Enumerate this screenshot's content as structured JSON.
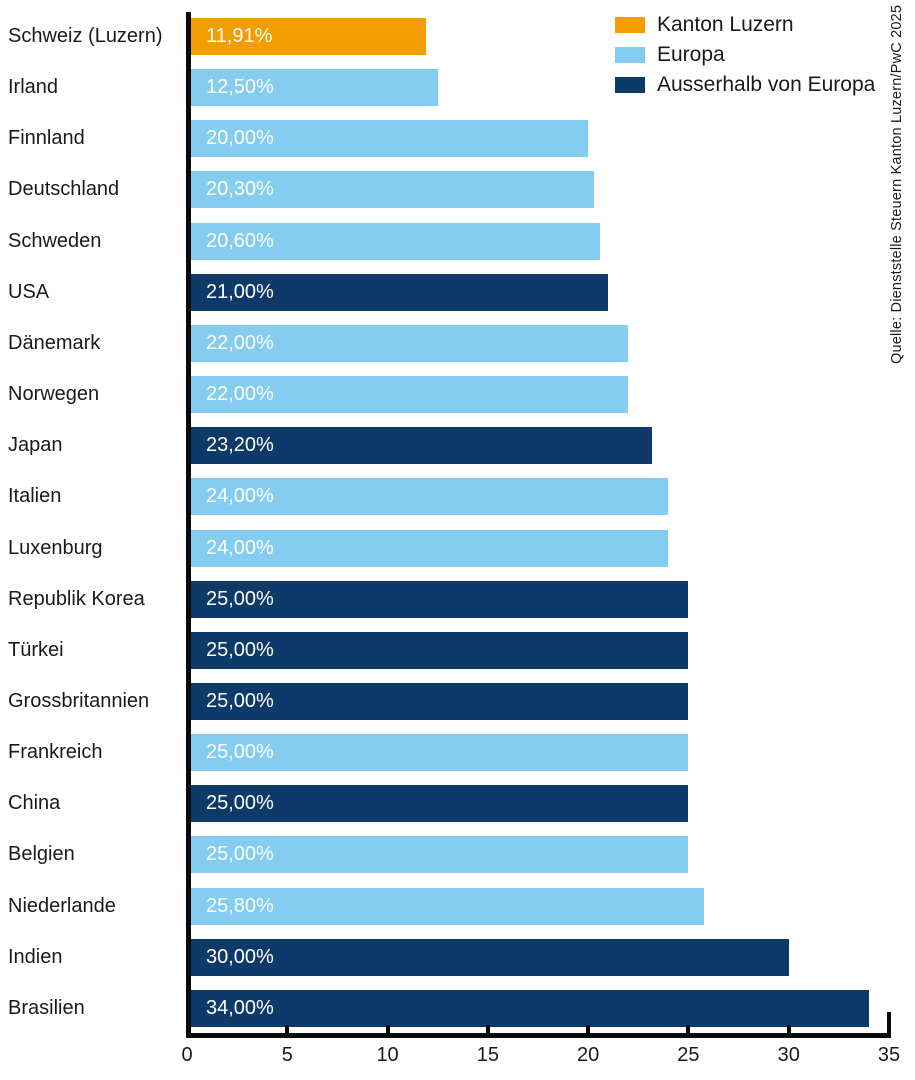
{
  "chart_data": {
    "type": "bar",
    "orientation": "horizontal",
    "title": "",
    "xlabel": "",
    "ylabel": "",
    "xlim": [
      0,
      35
    ],
    "x_ticks": [
      0,
      5,
      10,
      15,
      20,
      25,
      30,
      35
    ],
    "grid": false,
    "legend_position": "top-right",
    "legend": [
      {
        "label": "Kanton Luzern",
        "color": "#f49d00"
      },
      {
        "label": "Europa",
        "color": "#84ccf0"
      },
      {
        "label": "Ausserhalb von Europa",
        "color": "#0e3a69"
      }
    ],
    "bars": [
      {
        "label": "Schweiz (Luzern)",
        "value": 11.91,
        "value_label": "11,91%",
        "group": "Kanton Luzern"
      },
      {
        "label": "Irland",
        "value": 12.5,
        "value_label": "12,50%",
        "group": "Europa"
      },
      {
        "label": "Finnland",
        "value": 20.0,
        "value_label": "20,00%",
        "group": "Europa"
      },
      {
        "label": "Deutschland",
        "value": 20.3,
        "value_label": "20,30%",
        "group": "Europa"
      },
      {
        "label": "Schweden",
        "value": 20.6,
        "value_label": "20,60%",
        "group": "Europa"
      },
      {
        "label": "USA",
        "value": 21.0,
        "value_label": "21,00%",
        "group": "Ausserhalb von Europa"
      },
      {
        "label": "Dänemark",
        "value": 22.0,
        "value_label": "22,00%",
        "group": "Europa"
      },
      {
        "label": "Norwegen",
        "value": 22.0,
        "value_label": "22,00%",
        "group": "Europa"
      },
      {
        "label": "Japan",
        "value": 23.2,
        "value_label": "23,20%",
        "group": "Ausserhalb von Europa"
      },
      {
        "label": "Italien",
        "value": 24.0,
        "value_label": "24,00%",
        "group": "Europa"
      },
      {
        "label": "Luxenburg",
        "value": 24.0,
        "value_label": "24,00%",
        "group": "Europa"
      },
      {
        "label": "Republik Korea",
        "value": 25.0,
        "value_label": "25,00%",
        "group": "Ausserhalb von Europa"
      },
      {
        "label": "Türkei",
        "value": 25.0,
        "value_label": "25,00%",
        "group": "Ausserhalb von Europa"
      },
      {
        "label": "Grossbritannien",
        "value": 25.0,
        "value_label": "25,00%",
        "group": "Ausserhalb von Europa"
      },
      {
        "label": "Frankreich",
        "value": 25.0,
        "value_label": "25,00%",
        "group": "Europa"
      },
      {
        "label": "China",
        "value": 25.0,
        "value_label": "25,00%",
        "group": "Ausserhalb von Europa"
      },
      {
        "label": "Belgien",
        "value": 25.0,
        "value_label": "25,00%",
        "group": "Europa"
      },
      {
        "label": "Niederlande",
        "value": 25.8,
        "value_label": "25,80%",
        "group": "Europa"
      },
      {
        "label": "Indien",
        "value": 30.0,
        "value_label": "30,00%",
        "group": "Ausserhalb von Europa"
      },
      {
        "label": "Brasilien",
        "value": 34.0,
        "value_label": "34,00%",
        "group": "Ausserhalb von Europa"
      }
    ]
  },
  "colors": {
    "kanton_luzern": "#f49d00",
    "europa": "#84ccf0",
    "ausserhalb_von_europa": "#0e3a69",
    "axis": "#0a0a0a",
    "text": "#1a1a1a",
    "bar_value_text": "#ffffff"
  },
  "source_note": "Quelle: Dienststelle Steuern Kanton Luzern/PwC 2025"
}
